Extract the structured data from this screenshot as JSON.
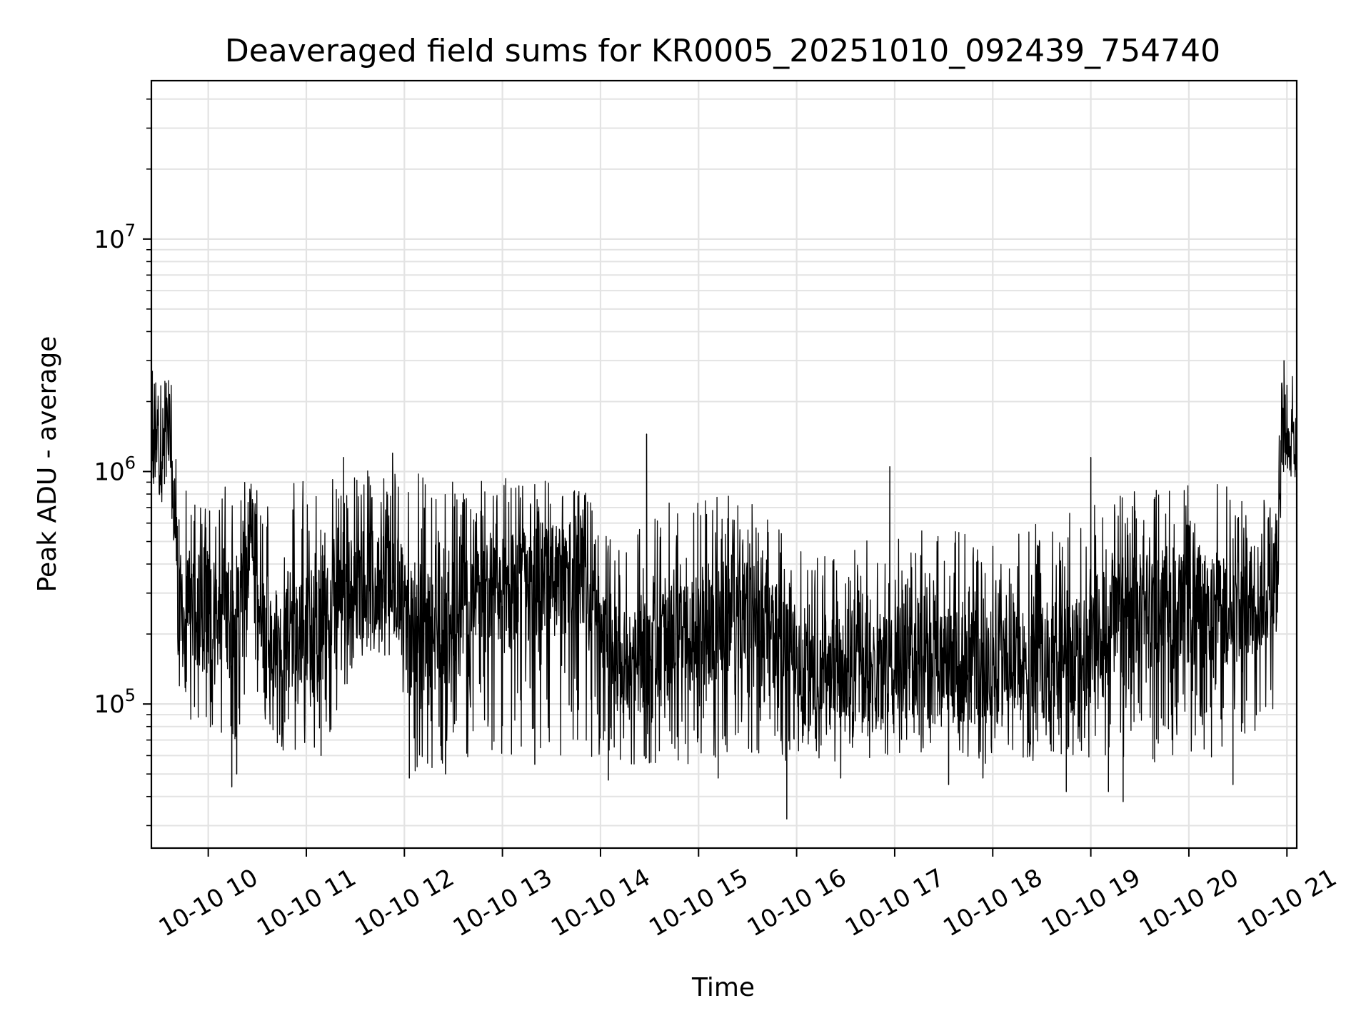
{
  "chart_data": {
    "type": "line",
    "title": "Deaveraged field sums for KR0005_20251010_092439_754740",
    "xlabel": "Time",
    "ylabel": "Peak ADU - average",
    "yscale": "log",
    "ylim": [
      24000,
      48000000
    ],
    "xlim_hours": [
      9.42,
      21.1
    ],
    "grid": true,
    "x_ticks": [
      {
        "hour": 10,
        "label": "10-10 10"
      },
      {
        "hour": 11,
        "label": "10-10 11"
      },
      {
        "hour": 12,
        "label": "10-10 12"
      },
      {
        "hour": 13,
        "label": "10-10 13"
      },
      {
        "hour": 14,
        "label": "10-10 14"
      },
      {
        "hour": 15,
        "label": "10-10 15"
      },
      {
        "hour": 16,
        "label": "10-10 16"
      },
      {
        "hour": 17,
        "label": "10-10 17"
      },
      {
        "hour": 18,
        "label": "10-10 18"
      },
      {
        "hour": 19,
        "label": "10-10 19"
      },
      {
        "hour": 20,
        "label": "10-10 20"
      },
      {
        "hour": 21,
        "label": "10-10 21"
      }
    ],
    "y_ticks": [
      {
        "value": 100000,
        "base": "10",
        "exp": "5"
      },
      {
        "value": 1000000,
        "base": "10",
        "exp": "6"
      },
      {
        "value": 10000000,
        "base": "10",
        "exp": "7"
      }
    ],
    "series": [
      {
        "name": "Peak ADU - average",
        "color": "#000000",
        "envelope": [
          {
            "hour": 9.42,
            "low": 800000,
            "high": 2700000,
            "typ": 1300000
          },
          {
            "hour": 9.6,
            "low": 700000,
            "high": 2400000,
            "typ": 1500000
          },
          {
            "hour": 9.65,
            "low": 450000,
            "high": 2300000,
            "typ": 900000
          },
          {
            "hour": 9.7,
            "low": 80000,
            "high": 900000,
            "typ": 250000
          },
          {
            "hour": 10.3,
            "low": 70000,
            "high": 900000,
            "typ": 250000
          },
          {
            "hour": 10.45,
            "low": 180000,
            "high": 900000,
            "typ": 550000
          },
          {
            "hour": 10.55,
            "low": 65000,
            "high": 900000,
            "typ": 180000
          },
          {
            "hour": 11.2,
            "low": 60000,
            "high": 1000000,
            "typ": 230000
          },
          {
            "hour": 11.5,
            "low": 160000,
            "high": 1000000,
            "typ": 330000
          },
          {
            "hour": 11.95,
            "low": 160000,
            "high": 1100000,
            "typ": 330000
          },
          {
            "hour": 12.05,
            "low": 50000,
            "high": 1000000,
            "typ": 180000
          },
          {
            "hour": 12.8,
            "low": 60000,
            "high": 950000,
            "typ": 300000
          },
          {
            "hour": 13.8,
            "low": 60000,
            "high": 900000,
            "typ": 350000
          },
          {
            "hour": 14.1,
            "low": 55000,
            "high": 550000,
            "typ": 150000
          },
          {
            "hour": 15.0,
            "low": 55000,
            "high": 850000,
            "typ": 200000
          },
          {
            "hour": 15.5,
            "low": 60000,
            "high": 750000,
            "typ": 250000
          },
          {
            "hour": 16.2,
            "low": 55000,
            "high": 450000,
            "typ": 130000
          },
          {
            "hour": 17.0,
            "low": 60000,
            "high": 550000,
            "typ": 150000
          },
          {
            "hour": 18.0,
            "low": 55000,
            "high": 600000,
            "typ": 140000
          },
          {
            "hour": 18.9,
            "low": 55000,
            "high": 700000,
            "typ": 160000
          },
          {
            "hour": 19.5,
            "low": 55000,
            "high": 850000,
            "typ": 250000
          },
          {
            "hour": 20.5,
            "low": 60000,
            "high": 900000,
            "typ": 250000
          },
          {
            "hour": 20.9,
            "low": 100000,
            "high": 900000,
            "typ": 350000
          },
          {
            "hour": 20.95,
            "low": 1000000,
            "high": 2800000,
            "typ": 1500000
          },
          {
            "hour": 21.1,
            "low": 900000,
            "high": 2700000,
            "typ": 1400000
          }
        ],
        "spikes": [
          {
            "hour": 9.43,
            "value": 2700000
          },
          {
            "hour": 9.57,
            "value": 2400000
          },
          {
            "hour": 10.24,
            "value": 44000
          },
          {
            "hour": 10.29,
            "value": 50000
          },
          {
            "hour": 11.15,
            "value": 60000
          },
          {
            "hour": 11.38,
            "value": 1150000
          },
          {
            "hour": 11.88,
            "value": 1200000
          },
          {
            "hour": 12.05,
            "value": 48000
          },
          {
            "hour": 12.42,
            "value": 50000
          },
          {
            "hour": 13.33,
            "value": 55000
          },
          {
            "hour": 14.08,
            "value": 47000
          },
          {
            "hour": 14.47,
            "value": 1450000
          },
          {
            "hour": 15.2,
            "value": 48000
          },
          {
            "hour": 15.9,
            "value": 32000
          },
          {
            "hour": 16.45,
            "value": 48000
          },
          {
            "hour": 16.95,
            "value": 1050000
          },
          {
            "hour": 17.55,
            "value": 45000
          },
          {
            "hour": 17.9,
            "value": 48000
          },
          {
            "hour": 18.75,
            "value": 42000
          },
          {
            "hour": 19.0,
            "value": 1150000
          },
          {
            "hour": 19.18,
            "value": 42000
          },
          {
            "hour": 19.33,
            "value": 38000
          },
          {
            "hour": 20.45,
            "value": 45000
          },
          {
            "hour": 20.97,
            "value": 3000000
          },
          {
            "hour": 21.1,
            "value": 2700000
          }
        ]
      }
    ]
  }
}
